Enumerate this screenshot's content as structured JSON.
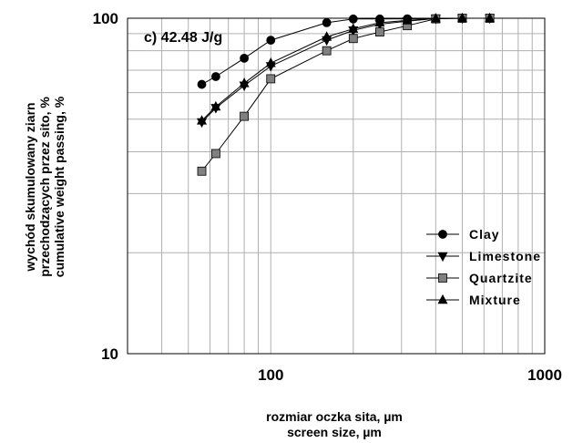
{
  "chart_data": {
    "type": "line",
    "annotation": "c) 42.48 J/g",
    "xlabel_lines": [
      "rozmiar oczka sita, µm",
      "screen size, µm"
    ],
    "ylabel_lines": [
      "wychód skumulowany ziarn",
      "przechodzących przez sito, %",
      "cumulative weight passing, %"
    ],
    "xscale": "log",
    "yscale": "log",
    "xlim": [
      30,
      1000
    ],
    "ylim": [
      10,
      100
    ],
    "x_ticks": [
      "100",
      "1000"
    ],
    "y_ticks": [
      "10",
      "100"
    ],
    "grid": true,
    "legend_position": "bottom-right",
    "series": [
      {
        "name": "Clay",
        "marker": "circle",
        "color": "#000000",
        "points": [
          [
            56,
            63.5
          ],
          [
            63,
            67
          ],
          [
            80,
            76
          ],
          [
            100,
            86
          ],
          [
            160,
            97
          ],
          [
            200,
            99.5
          ],
          [
            250,
            99.5
          ],
          [
            315,
            99.6
          ],
          [
            400,
            99.8
          ],
          [
            500,
            100
          ],
          [
            630,
            100
          ]
        ]
      },
      {
        "name": "Limestone",
        "marker": "triangle-down",
        "color": "#000000",
        "points": [
          [
            56,
            49
          ],
          [
            63,
            54
          ],
          [
            80,
            63
          ],
          [
            100,
            72
          ],
          [
            160,
            86
          ],
          [
            200,
            92
          ],
          [
            250,
            96
          ],
          [
            315,
            98
          ],
          [
            400,
            99.8
          ],
          [
            500,
            100
          ],
          [
            630,
            100
          ]
        ]
      },
      {
        "name": "Quartzite",
        "marker": "square",
        "color": "#808080",
        "points": [
          [
            56,
            35
          ],
          [
            63,
            39.5
          ],
          [
            80,
            51
          ],
          [
            100,
            66
          ],
          [
            160,
            80
          ],
          [
            200,
            87
          ],
          [
            250,
            91
          ],
          [
            315,
            95
          ],
          [
            400,
            99.6
          ],
          [
            500,
            100
          ],
          [
            630,
            100
          ]
        ]
      },
      {
        "name": "Mixture",
        "marker": "triangle-up",
        "color": "#000000",
        "points": [
          [
            56,
            49.5
          ],
          [
            63,
            54.5
          ],
          [
            80,
            64
          ],
          [
            100,
            73.5
          ],
          [
            160,
            88
          ],
          [
            200,
            93
          ],
          [
            250,
            97
          ],
          [
            315,
            98.5
          ],
          [
            400,
            99.8
          ],
          [
            500,
            100
          ],
          [
            630,
            100
          ]
        ]
      }
    ]
  }
}
